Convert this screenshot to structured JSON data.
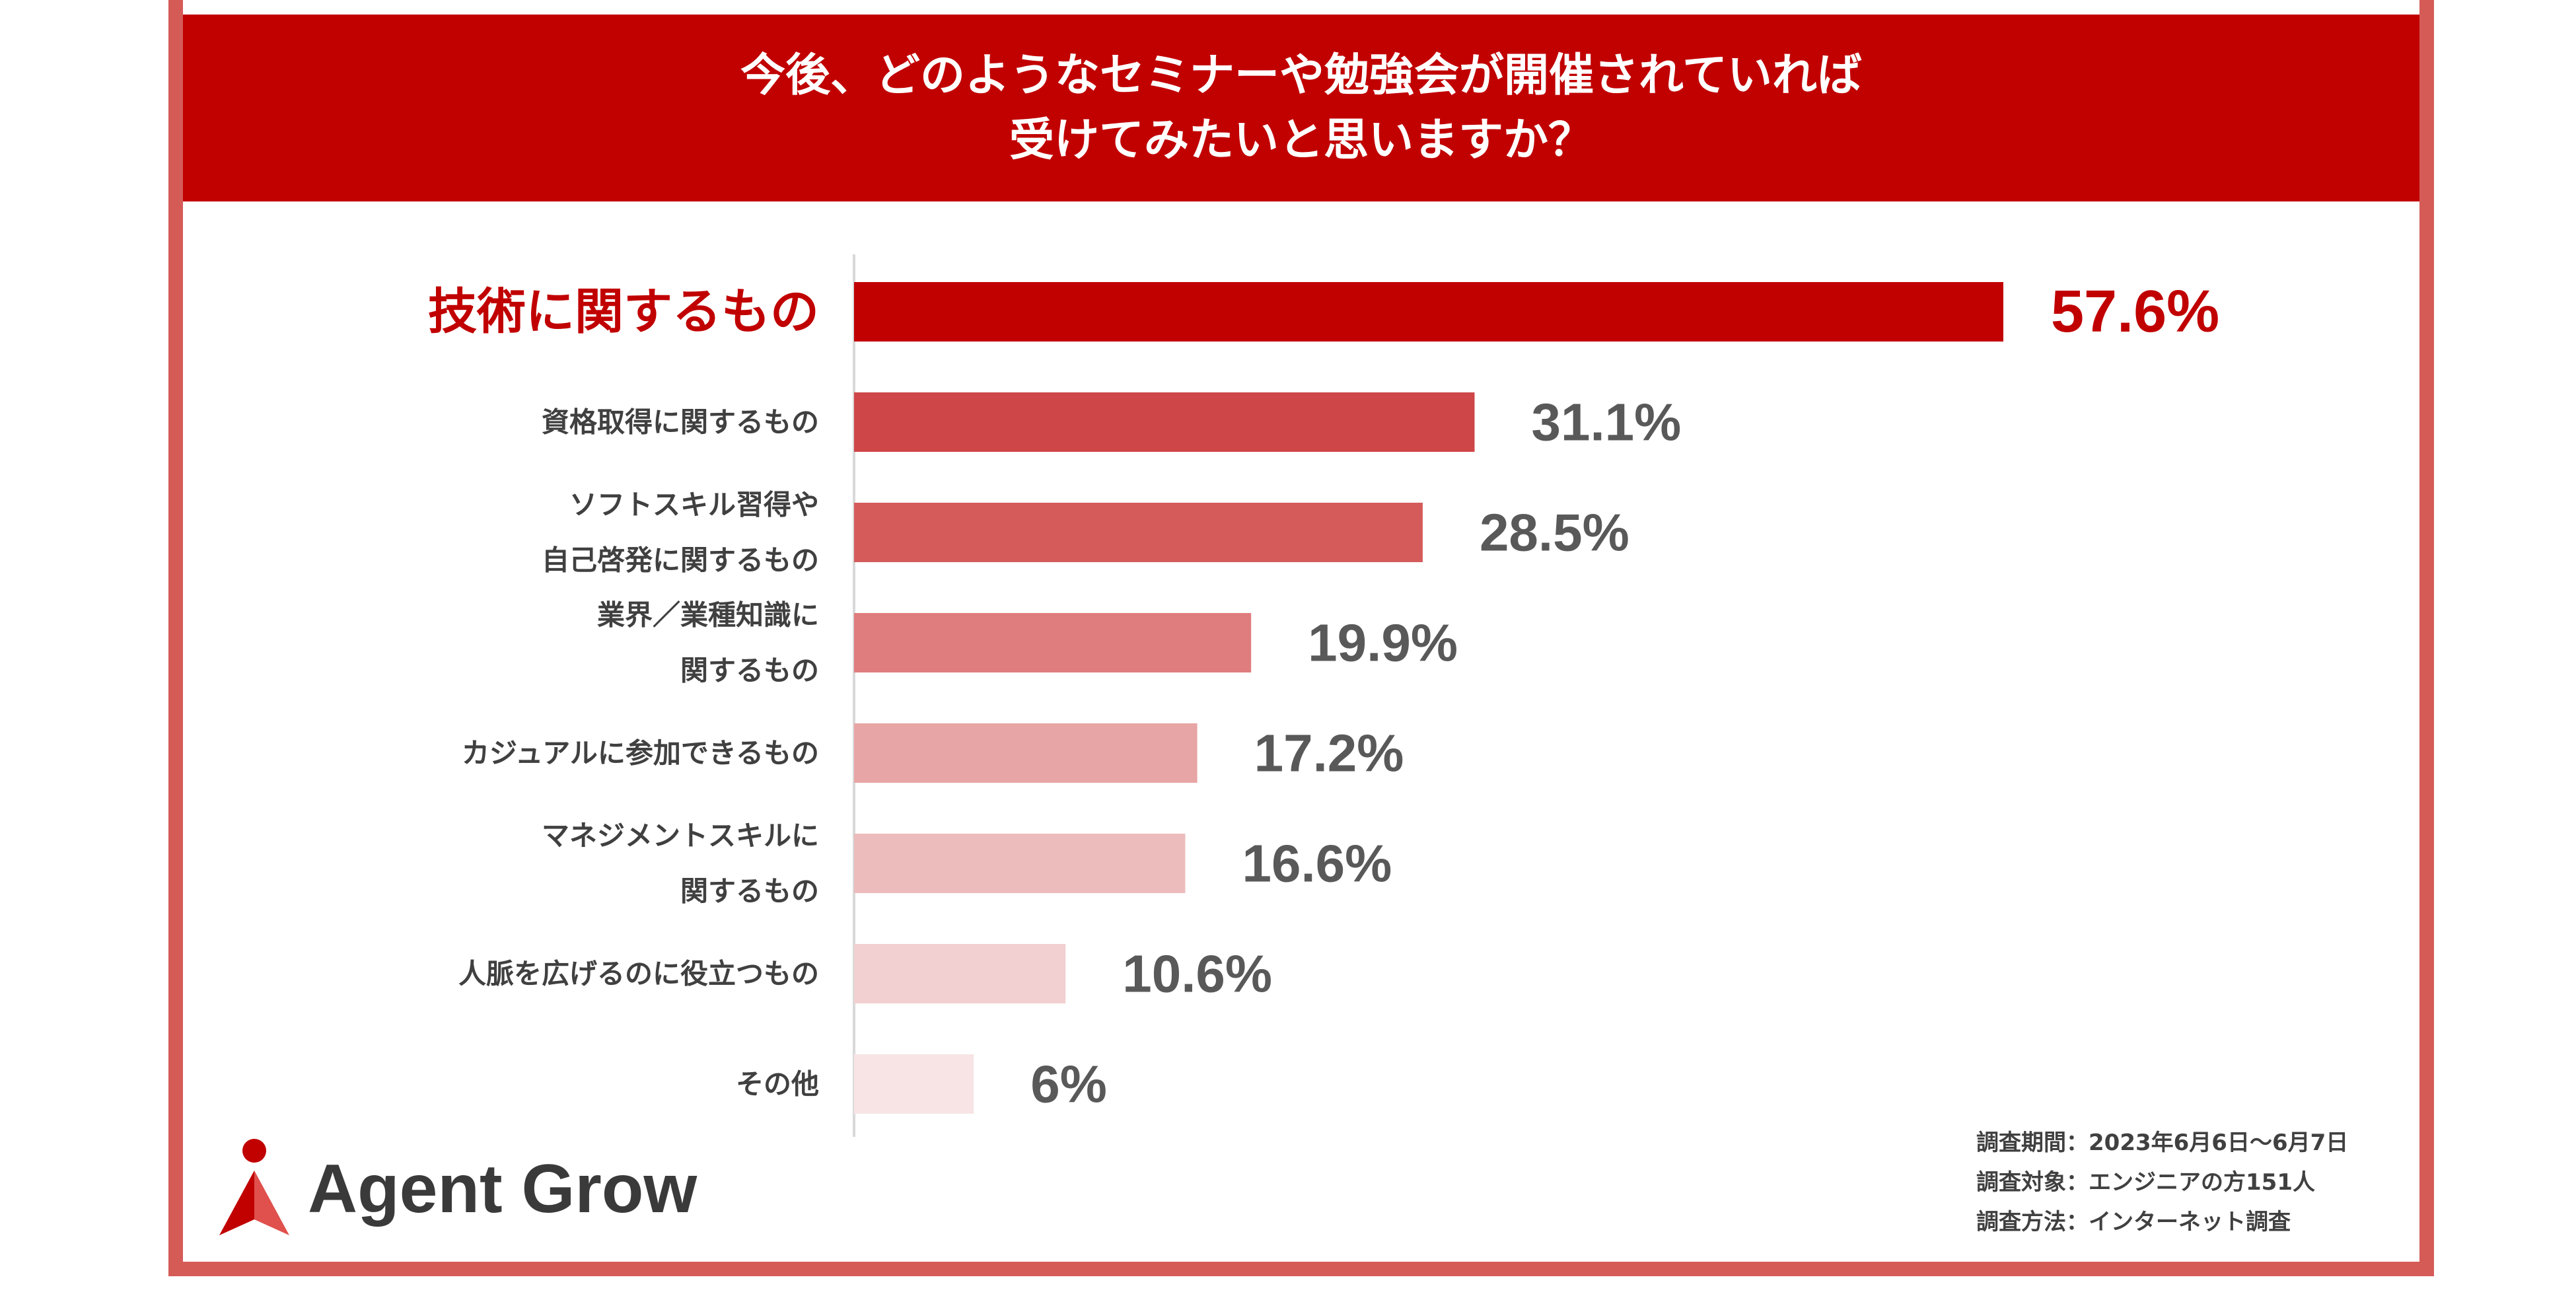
{
  "header": {
    "title_line1": "今後、どのようなセミナーや勉強会が開催されていれば",
    "title_line2": "受けてみたいと思いますか？"
  },
  "chart_data": {
    "type": "bar",
    "orientation": "horizontal",
    "categories": [
      [
        "技術に関するもの"
      ],
      [
        "資格取得に関するもの"
      ],
      [
        "ソフトスキル習得や",
        "自己啓発に関するもの"
      ],
      [
        "業界／業種知識に",
        "関するもの"
      ],
      [
        "カジュアルに参加できるもの"
      ],
      [
        "マネジメントスキルに",
        "関するもの"
      ],
      [
        "人脈を広げるのに役立つもの"
      ],
      [
        "その他"
      ]
    ],
    "values": [
      57.6,
      31.1,
      28.5,
      19.9,
      17.2,
      16.6,
      10.6,
      6
    ],
    "value_labels": [
      "57.6%",
      "31.1%",
      "28.5%",
      "19.9%",
      "17.2%",
      "16.6%",
      "10.6%",
      "6%"
    ],
    "bar_colors": [
      "#c10000",
      "#cf4648",
      "#d55b5b",
      "#df7c7d",
      "#e8a5a5",
      "#ecbcbc",
      "#f2cfd0",
      "#f8e4e5"
    ],
    "highlight_index": 0,
    "highlight_color": "#c10000",
    "label_color": "#404040",
    "value_color": "#595959",
    "xlim": [
      0,
      60
    ],
    "grid": false,
    "legend": "none"
  },
  "logo": {
    "text": "Agent Grow",
    "icon": "agent-grow-logo-icon"
  },
  "notes": {
    "period": "調査期間：2023年6月6日〜6月7日",
    "target": "調査対象：エンジニアの方151人",
    "method": "調査方法：インターネット調査"
  }
}
